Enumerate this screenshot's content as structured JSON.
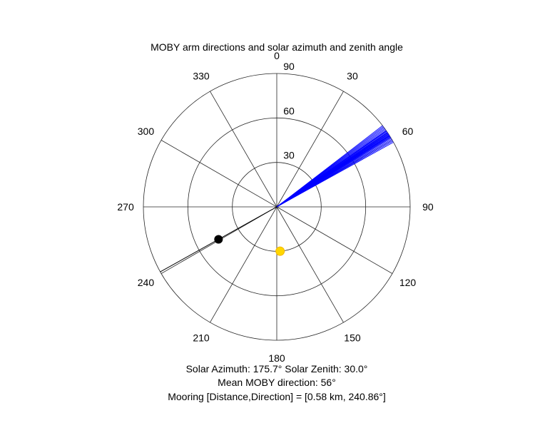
{
  "chart_data": {
    "type": "polar",
    "title": "MOBY arm directions and solar azimuth and zenith angle",
    "theta_direction": "clockwise",
    "theta_zero": "top",
    "theta_ticks": [
      0,
      30,
      60,
      90,
      120,
      150,
      180,
      210,
      240,
      270,
      300,
      330
    ],
    "theta_tick_labels": [
      "0",
      "30",
      "60",
      "90",
      "120",
      "150",
      "180",
      "210",
      "240",
      "270",
      "300",
      "330"
    ],
    "r_max": 90,
    "r_ticks": [
      30,
      60,
      90
    ],
    "r_tick_labels": [
      "30",
      "60",
      "90"
    ],
    "grid": true,
    "series": [
      {
        "kind": "arm-lines",
        "color": "#0000ff",
        "r": 90,
        "angles": [
          53.0,
          53.5,
          54.0,
          54.5,
          55.0,
          55.3,
          55.6,
          56.0,
          56.2,
          56.5,
          56.8,
          57.0,
          57.3,
          57.6,
          58.0,
          58.3,
          58.6,
          59.0,
          59.5,
          60.0,
          60.5,
          61.0,
          52.5,
          57.8
        ]
      },
      {
        "kind": "mooring-line",
        "color": "#000000",
        "theta": 240.86,
        "r_marker": 45
      },
      {
        "kind": "sun-marker",
        "color": "#ffd700",
        "theta": 175.7,
        "r": 30.0
      }
    ],
    "captions": [
      "Solar Azimuth: 175.7°   Solar Zenith: 30.0°",
      "Mean MOBY direction: 56°",
      "Mooring [Distance,Direction] = [0.58 km, 240.86°]"
    ]
  }
}
